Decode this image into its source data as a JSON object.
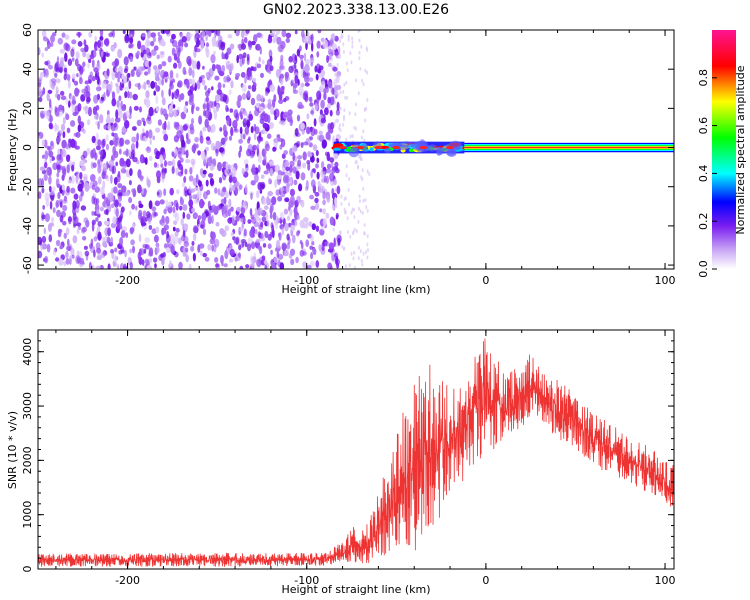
{
  "chart_data": [
    {
      "type": "heatmap",
      "title": "GN02.2023.338.13.00.E26",
      "xlabel": "Height of straight line (km)",
      "ylabel": "Frequency (Hz)",
      "xlim": [
        -250,
        105
      ],
      "ylim": [
        -62,
        60
      ],
      "x_ticks": [
        -200,
        -100,
        0,
        100
      ],
      "y_ticks": [
        -60,
        -40,
        -20,
        0,
        20,
        40,
        60
      ],
      "colorbar": {
        "label": "Normalized spectral amplitude",
        "range": [
          0.0,
          1.0
        ],
        "ticks": [
          0.0,
          0.2,
          0.4,
          0.6,
          0.8
        ],
        "colormap": [
          "#ffffff",
          "#8a2be2",
          "#0000ff",
          "#00ffff",
          "#00ff00",
          "#ffff00",
          "#ff0000",
          "#ff1493"
        ]
      },
      "regions": [
        {
          "x_range": [
            -250,
            -85
          ],
          "y_range": [
            -62,
            60
          ],
          "description_level": "noise",
          "amplitude": [
            0.1,
            0.3
          ]
        },
        {
          "x_range": [
            -85,
            -12
          ],
          "y_range": [
            -2,
            2
          ],
          "description_level": "signal-onset",
          "amplitude": [
            0.3,
            1.0
          ]
        },
        {
          "x_range": [
            -12,
            105
          ],
          "y_range": [
            -1,
            1
          ],
          "description_level": "signal",
          "amplitude": [
            0.8,
            1.0
          ]
        }
      ],
      "grid": false
    },
    {
      "type": "line",
      "xlabel": "Height of straight line (km)",
      "ylabel": "SNR (10 * v/v)",
      "xlim": [
        -250,
        105
      ],
      "ylim": [
        0,
        4400
      ],
      "x_ticks": [
        -200,
        -100,
        0,
        100
      ],
      "y_ticks": [
        0,
        1000,
        2000,
        3000,
        4000
      ],
      "color": "#ee3333",
      "envelope": {
        "x": [
          -250,
          -150,
          -90,
          -80,
          -75,
          -70,
          -65,
          -60,
          -50,
          -40,
          -30,
          -20,
          -10,
          0,
          10,
          20,
          25,
          30,
          40,
          50,
          60,
          70,
          80,
          90,
          100,
          105
        ],
        "low": [
          40,
          40,
          60,
          100,
          50,
          100,
          50,
          200,
          250,
          300,
          700,
          1300,
          1700,
          2000,
          2400,
          2600,
          2800,
          2700,
          2400,
          2200,
          1900,
          1700,
          1600,
          1400,
          1200,
          1100
        ],
        "high": [
          280,
          300,
          300,
          500,
          800,
          700,
          900,
          1400,
          2600,
          3500,
          3800,
          3400,
          3700,
          4380,
          3600,
          3800,
          4050,
          3700,
          3500,
          3200,
          2900,
          2700,
          2400,
          2300,
          2000,
          1900
        ]
      },
      "grid": false
    }
  ]
}
